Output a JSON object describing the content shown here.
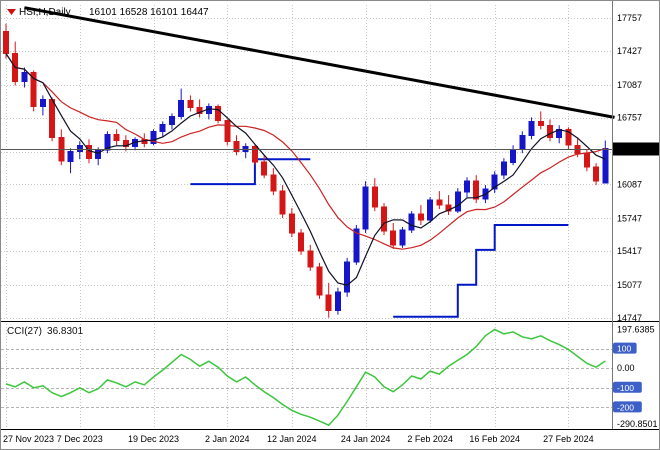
{
  "header": {
    "title": "HSI,H,Daily",
    "ohlc": "16101 16528 16101 16447",
    "indicator_label": "CCI(27)",
    "indicator_value": "36.8301",
    "symbol_marker_icon": "red-down-triangle"
  },
  "colors": {
    "bull": "#1616c8",
    "bear": "#d41616",
    "ma_fast": "#101028",
    "ma_slow": "#cc2222",
    "step_line": "#0018c8",
    "trendline": "#000000",
    "cci": "#3cc63c",
    "grid": "#c9c9c9",
    "level_line": "#b4b4b4",
    "level_badge": "#3c5fc8",
    "price_tag_bg": "#000000",
    "price_tag_text": "#ffffff",
    "axis_text": "#000000"
  },
  "chart_data": {
    "type": "candlestick",
    "symbol": "HSI",
    "timeframe": "Daily",
    "title": "HSI,H,Daily 16101 16528 16101 16447",
    "ohlc_display": {
      "open": 16101,
      "high": 16528,
      "low": 16101,
      "close": 16447
    },
    "current_price": 16447,
    "y_axis": {
      "labels": [
        17757,
        17427,
        17087,
        16757,
        16087,
        15747,
        15417,
        15077,
        14747
      ],
      "gridlines": [
        17757,
        17427,
        17087,
        16757,
        16417,
        16087,
        15747,
        15417,
        15077,
        14747
      ]
    },
    "x_axis": {
      "labels": [
        {
          "index": 0,
          "label": "27 Nov 2023"
        },
        {
          "index": 8,
          "label": "7 Dec 2023"
        },
        {
          "index": 16,
          "label": "19 Dec 2023"
        },
        {
          "index": 24,
          "label": "2 Jan 2024"
        },
        {
          "index": 31,
          "label": "12 Jan 2024"
        },
        {
          "index": 39,
          "label": "24 Jan 2024"
        },
        {
          "index": 46,
          "label": "2 Feb 2024"
        },
        {
          "index": 53,
          "label": "16 Feb 2024"
        },
        {
          "index": 61,
          "label": "27 Feb 2024"
        }
      ]
    },
    "candles": [
      [
        17620,
        17700,
        17350,
        17400
      ],
      [
        17400,
        17520,
        17080,
        17120
      ],
      [
        17120,
        17260,
        17060,
        17210
      ],
      [
        17210,
        17230,
        16820,
        16870
      ],
      [
        16870,
        16980,
        16780,
        16940
      ],
      [
        16940,
        16960,
        16520,
        16560
      ],
      [
        16560,
        16640,
        16280,
        16320
      ],
      [
        16320,
        16450,
        16200,
        16420
      ],
      [
        16420,
        16520,
        16340,
        16480
      ],
      [
        16480,
        16540,
        16300,
        16350
      ],
      [
        16350,
        16460,
        16280,
        16430
      ],
      [
        16430,
        16620,
        16400,
        16590
      ],
      [
        16590,
        16640,
        16480,
        16530
      ],
      [
        16530,
        16580,
        16420,
        16470
      ],
      [
        16470,
        16560,
        16430,
        16540
      ],
      [
        16540,
        16600,
        16460,
        16500
      ],
      [
        16500,
        16640,
        16480,
        16620
      ],
      [
        16620,
        16720,
        16560,
        16690
      ],
      [
        16690,
        16800,
        16640,
        16770
      ],
      [
        16770,
        17050,
        16740,
        16930
      ],
      [
        16930,
        16980,
        16820,
        16860
      ],
      [
        16860,
        16940,
        16760,
        16800
      ],
      [
        16800,
        16900,
        16740,
        16870
      ],
      [
        16870,
        16890,
        16700,
        16730
      ],
      [
        16730,
        16740,
        16480,
        16520
      ],
      [
        16520,
        16580,
        16380,
        16420
      ],
      [
        16420,
        16500,
        16350,
        16470
      ],
      [
        16470,
        16490,
        16280,
        16310
      ],
      [
        16310,
        16380,
        16150,
        16180
      ],
      [
        16180,
        16250,
        15980,
        16020
      ],
      [
        16020,
        16080,
        15750,
        15790
      ],
      [
        15790,
        15850,
        15560,
        15600
      ],
      [
        15600,
        15640,
        15380,
        15420
      ],
      [
        15420,
        15480,
        15220,
        15260
      ],
      [
        15260,
        15300,
        14940,
        14980
      ],
      [
        14980,
        15100,
        14750,
        14820
      ],
      [
        14820,
        15050,
        14780,
        15010
      ],
      [
        15010,
        15350,
        14960,
        15310
      ],
      [
        15310,
        15680,
        15280,
        15640
      ],
      [
        15640,
        16120,
        15600,
        16060
      ],
      [
        16060,
        16150,
        15820,
        15860
      ],
      [
        15860,
        15900,
        15580,
        15620
      ],
      [
        15620,
        15700,
        15440,
        15480
      ],
      [
        15480,
        15660,
        15450,
        15630
      ],
      [
        15630,
        15820,
        15600,
        15790
      ],
      [
        15790,
        15880,
        15680,
        15730
      ],
      [
        15730,
        15960,
        15700,
        15930
      ],
      [
        15930,
        16020,
        15840,
        15880
      ],
      [
        15880,
        15980,
        15780,
        15820
      ],
      [
        15820,
        16050,
        15800,
        16010
      ],
      [
        16010,
        16160,
        15960,
        16120
      ],
      [
        16120,
        16180,
        15900,
        15940
      ],
      [
        15940,
        16080,
        15900,
        16040
      ],
      [
        16040,
        16220,
        16000,
        16180
      ],
      [
        16180,
        16350,
        16140,
        16310
      ],
      [
        16310,
        16480,
        16280,
        16440
      ],
      [
        16440,
        16620,
        16400,
        16580
      ],
      [
        16580,
        16760,
        16540,
        16720
      ],
      [
        16720,
        16820,
        16640,
        16680
      ],
      [
        16680,
        16740,
        16520,
        16560
      ],
      [
        16560,
        16680,
        16500,
        16640
      ],
      [
        16640,
        16660,
        16440,
        16480
      ],
      [
        16480,
        16560,
        16360,
        16400
      ],
      [
        16400,
        16440,
        16220,
        16260
      ],
      [
        16260,
        16300,
        16080,
        16120
      ],
      [
        16101,
        16528,
        16101,
        16447
      ]
    ],
    "overlays": {
      "ma_fast_period": 5,
      "ma_slow_period": 13,
      "trendline": {
        "from_index": 2,
        "from_price": 17860,
        "to_index": 66,
        "to_price": 16760
      },
      "step_lines": [
        [
          [
            20,
            16090
          ],
          [
            27,
            16090
          ],
          [
            27,
            16340
          ],
          [
            33,
            16340
          ]
        ],
        [
          [
            42,
            14760
          ],
          [
            49,
            14760
          ],
          [
            49,
            15080
          ],
          [
            51,
            15080
          ],
          [
            51,
            15430
          ],
          [
            53,
            15430
          ],
          [
            53,
            15680
          ],
          [
            61,
            15680
          ]
        ]
      ]
    },
    "indicator": {
      "name": "CCI",
      "period": 27,
      "current_value": 36.8301,
      "max_label": "197.6385",
      "min_label": "-290.8501",
      "levels": [
        {
          "value": 100,
          "label": "100",
          "badge": true
        },
        {
          "value": 0,
          "label": "0.00",
          "badge": false
        },
        {
          "value": -100,
          "label": "-100",
          "badge": true
        },
        {
          "value": -200,
          "label": "-200",
          "badge": true
        }
      ],
      "values": [
        -80,
        -95,
        -70,
        -100,
        -90,
        -125,
        -145,
        -125,
        -100,
        -125,
        -105,
        -60,
        -75,
        -95,
        -70,
        -85,
        -45,
        -10,
        30,
        70,
        45,
        10,
        35,
        5,
        -40,
        -70,
        -45,
        -85,
        -120,
        -150,
        -185,
        -215,
        -235,
        -250,
        -270,
        -290.8501,
        -240,
        -170,
        -95,
        -20,
        -45,
        -95,
        -120,
        -85,
        -40,
        -55,
        -15,
        -30,
        10,
        40,
        70,
        110,
        165,
        197.6385,
        175,
        185,
        160,
        150,
        165,
        140,
        120,
        95,
        60,
        25,
        5,
        36.8301
      ]
    }
  }
}
